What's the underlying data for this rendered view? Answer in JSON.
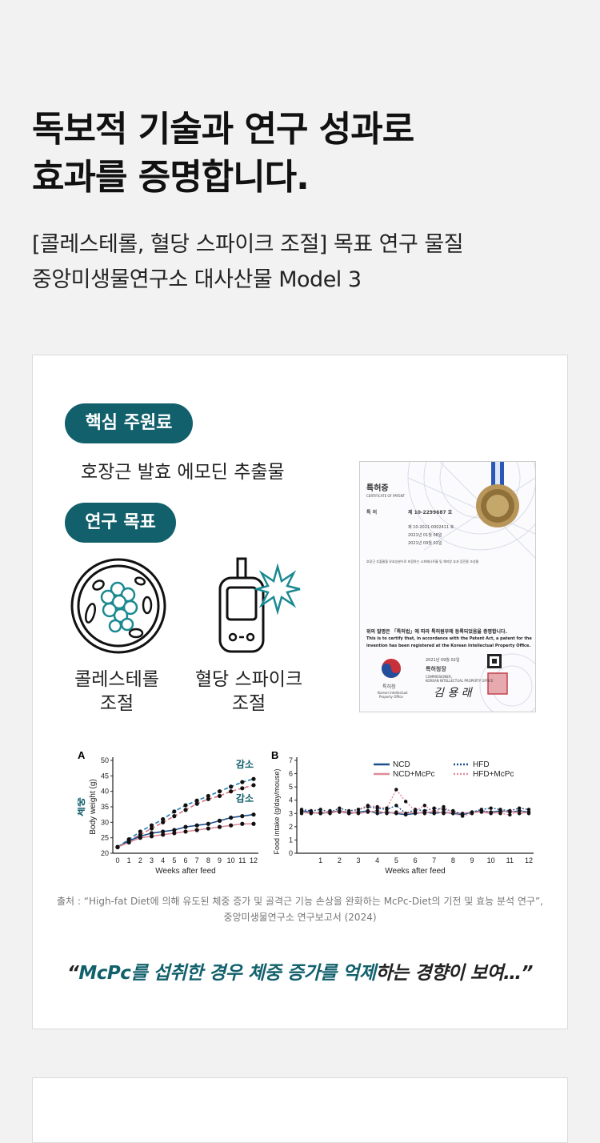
{
  "headline": {
    "line1": "독보적 기술과 연구 성과로",
    "line2": "효과를 증명합니다."
  },
  "subheading": {
    "line1": "[콜레스테롤, 혈당 스파이크 조절] 목표 연구 물질",
    "line2": "중앙미생물연구소 대사산물 Model 3"
  },
  "card": {
    "core_label": "핵심 주원료",
    "core_ingredient": "호장근 발효 에모딘 추출물",
    "goal_label": "연구 목표",
    "goals": [
      {
        "line1": "콜레스테롤",
        "line2": "조절",
        "icon": "cholesterol-cell-icon"
      },
      {
        "line1": "혈당 스파이크",
        "line2": "조절",
        "icon": "glucose-meter-icon"
      }
    ],
    "patent": {
      "title": "특허증",
      "title_en": "CERTIFICATE OF PATENT",
      "number_label": "특 허",
      "number": "제 10-2299687 호",
      "app_number": "제 10-2021-0002411 호",
      "date1": "2021년 01월 08일",
      "date2": "2021년 09월 02일",
      "invention": "호장근 추출물을 유효성분으로 포함하는 소화제나트륨 및 체지방 효과 증진용 조성물",
      "statement_ko": "위의 발명은 「특허법」에 따라 특허원부에 등록되었음을 증명합니다.",
      "statement_en1": "This is to certify that, in accordance with the Patent Act, a patent for the",
      "statement_en2": "invention has been registered at the Korean Intellectual Property Office.",
      "issue_date": "2021년 09월 02일",
      "office": "특허청장",
      "office_en1": "COMMISSIONER,",
      "office_en2": "KOREAN INTELLECTUAL PROPERTY OFFICE",
      "agency": "특허청",
      "agency_en1": "Korean Intellectual",
      "agency_en2": "Property Office",
      "signature": "김 용 래"
    },
    "source_line1": "출처 : “High-fat Diet에 의해 유도된 체중 증가 및 골격근 기능 손상을 완화하는 McPc-Diet의 기전 및 효능 분석 연구”,",
    "source_line2": "중앙미생물연구소 연구보고서 (2024)",
    "quote_open": "“",
    "quote_highlight": "McPc를 섭취한 경우 체중 증가를 억제",
    "quote_rest": "하는 경향이 보여…”"
  },
  "chart_data": [
    {
      "type": "line",
      "panel": "A",
      "xlabel": "Weeks after feed",
      "ylabel": "Body weight (g)",
      "ylim": [
        20,
        50
      ],
      "x": [
        0,
        1,
        2,
        3,
        4,
        5,
        6,
        7,
        8,
        9,
        10,
        11,
        12
      ],
      "annotations": [
        "체중",
        "감소",
        "감소"
      ],
      "series": [
        {
          "values": [
            22,
            24.5,
            27,
            29,
            31,
            33.5,
            35.5,
            37,
            38.5,
            40,
            41.5,
            43,
            44
          ],
          "color": "#1e7fb8",
          "style": "dashed"
        },
        {
          "values": [
            22,
            24,
            26,
            28,
            30,
            32,
            34,
            36,
            37.5,
            38.5,
            40,
            41,
            42
          ],
          "color": "#d9707f",
          "style": "dashed"
        },
        {
          "values": [
            22,
            24,
            25.5,
            26.5,
            27,
            27.5,
            28.5,
            29,
            29.5,
            30.5,
            31.5,
            32,
            32.5
          ],
          "color": "#1a4e8c",
          "style": "solid"
        },
        {
          "values": [
            22,
            23.5,
            25,
            25.5,
            26,
            26.5,
            27,
            27.5,
            28,
            28.5,
            29,
            29.5,
            29.5
          ],
          "color": "#e08a99",
          "style": "solid"
        }
      ]
    },
    {
      "type": "line",
      "panel": "B",
      "xlabel": "Weeks after feed",
      "ylabel": "Food intake (g/day/mouse)",
      "ylim": [
        0,
        7
      ],
      "x": [
        0,
        0.5,
        1,
        1.5,
        2,
        2.5,
        3,
        3.5,
        4,
        4.5,
        5,
        5.5,
        6,
        6.5,
        7,
        7.5,
        8,
        8.5,
        9,
        9.5,
        10,
        10.5,
        11,
        11.5,
        12
      ],
      "legend": [
        "NCD",
        "NCD+McPc",
        "HFD",
        "HFD+McPc"
      ],
      "series": [
        {
          "name": "NCD",
          "values": [
            3.2,
            3.1,
            3.0,
            3.1,
            3.2,
            3.0,
            3.1,
            3.2,
            3.0,
            3.1,
            3.0,
            2.9,
            3.0,
            3.1,
            3.0,
            3.1,
            3.0,
            2.9,
            3.1,
            3.2,
            3.1,
            3.2,
            3.1,
            3.2,
            3.1
          ],
          "color": "#1a4e8c",
          "style": "solid"
        },
        {
          "name": "NCD+McPc",
          "values": [
            3.1,
            3.0,
            3.1,
            3.0,
            3.2,
            3.1,
            3.0,
            3.1,
            3.2,
            3.0,
            3.1,
            3.0,
            3.1,
            3.0,
            3.2,
            3.0,
            3.1,
            3.0,
            3.1,
            3.1,
            3.0,
            3.1,
            3.2,
            3.0,
            3.1
          ],
          "color": "#e08a99",
          "style": "solid"
        },
        {
          "name": "HFD",
          "values": [
            3.3,
            3.2,
            3.3,
            3.1,
            3.4,
            3.2,
            3.3,
            3.5,
            3.4,
            3.3,
            3.6,
            3.0,
            3.3,
            3.2,
            3.4,
            3.3,
            3.2,
            2.9,
            3.1,
            3.3,
            3.4,
            3.3,
            3.2,
            3.4,
            3.3
          ],
          "color": "#1a4e8c",
          "style": "dotted"
        },
        {
          "name": "HFD+McPc",
          "values": [
            3.0,
            3.1,
            3.0,
            3.2,
            3.1,
            3.0,
            3.3,
            3.6,
            3.5,
            3.4,
            4.8,
            3.9,
            3.2,
            3.6,
            3.1,
            3.5,
            3.0,
            2.8,
            3.0,
            3.2,
            3.1,
            3.0,
            2.9,
            3.2,
            3.0
          ],
          "color": "#e08a99",
          "style": "dotted"
        }
      ]
    }
  ]
}
